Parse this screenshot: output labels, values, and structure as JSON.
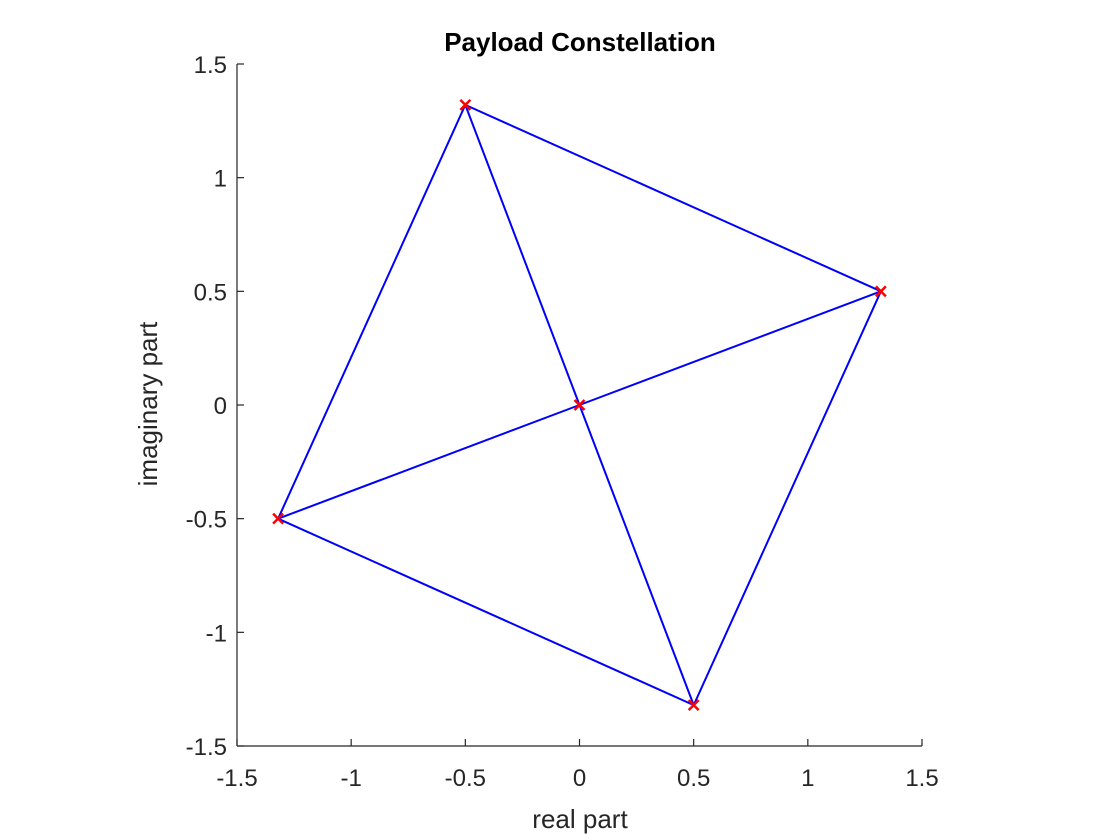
{
  "chart_data": {
    "type": "scatter",
    "title": "Payload Constellation",
    "xlabel": "real part",
    "ylabel": "imaginary part",
    "xlim": [
      -1.5,
      1.5
    ],
    "ylim": [
      -1.5,
      1.5
    ],
    "xticks": [
      -1.5,
      -1,
      -0.5,
      0,
      0.5,
      1,
      1.5
    ],
    "yticks": [
      -1.5,
      -1,
      -0.5,
      0,
      0.5,
      1,
      1.5
    ],
    "xtick_labels": [
      "-1.5",
      "-1",
      "-0.5",
      "0",
      "0.5",
      "1",
      "1.5"
    ],
    "ytick_labels": [
      "-1.5",
      "-1",
      "-0.5",
      "0",
      "0.5",
      "1",
      "1.5"
    ],
    "grid": false,
    "trajectory": {
      "color": "#0000ff",
      "points": [
        [
          -0.5,
          1.32
        ],
        [
          1.32,
          0.5
        ],
        [
          0.5,
          -1.32
        ],
        [
          -1.32,
          -0.5
        ],
        [
          -0.5,
          1.32
        ],
        [
          0.0,
          0.0
        ],
        [
          0.5,
          -1.32
        ],
        [
          1.32,
          0.5
        ],
        [
          0.0,
          0.0
        ],
        [
          -1.32,
          -0.5
        ]
      ]
    },
    "markers": {
      "color": "#ff0000",
      "symbol": "x",
      "points": [
        [
          -0.5,
          1.32
        ],
        [
          1.32,
          0.5
        ],
        [
          0.5,
          -1.32
        ],
        [
          -1.32,
          -0.5
        ],
        [
          0.0,
          0.0
        ]
      ]
    }
  }
}
